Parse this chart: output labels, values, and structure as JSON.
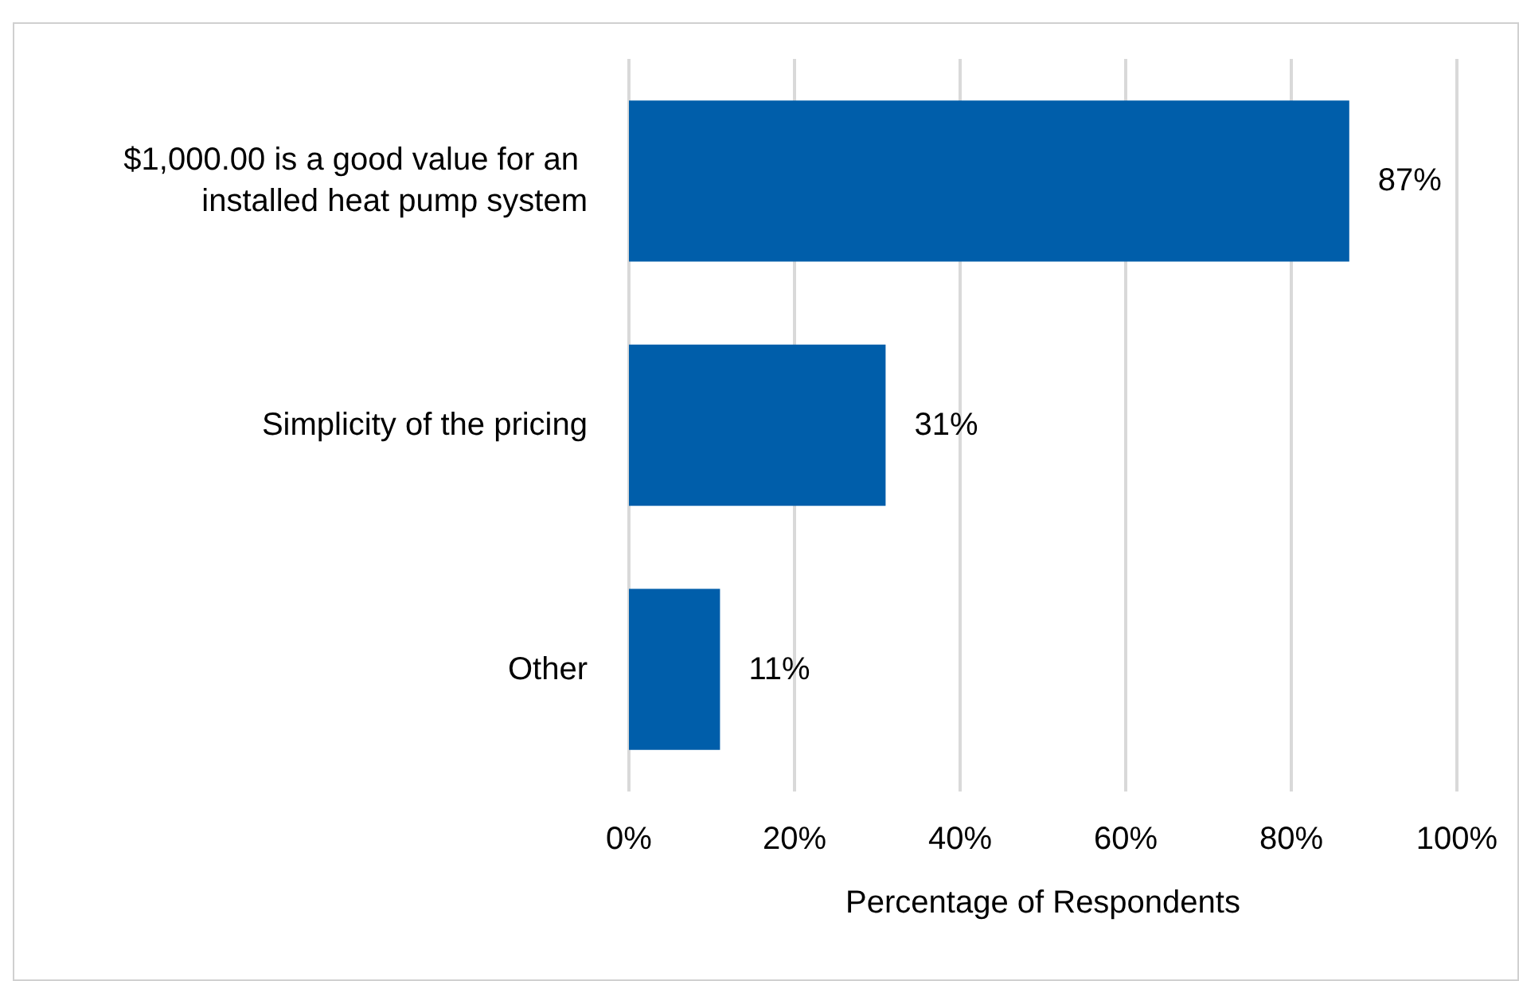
{
  "chart_data": {
    "type": "bar",
    "orientation": "horizontal",
    "xlabel": "Percentage of Respondents",
    "categories": [
      "$1,000.00 is a good value for an installed heat pump system",
      "Simplicity of the pricing",
      "Other"
    ],
    "values": [
      87,
      31,
      11
    ],
    "color": "#005eaa",
    "value_labels": [
      "87%",
      "31%",
      "11%"
    ],
    "xlim": [
      0,
      100
    ],
    "xticks": [
      {
        "value": 0,
        "label": "0%"
      },
      {
        "value": 20,
        "label": "20%"
      },
      {
        "value": 40,
        "label": "40%"
      },
      {
        "value": 60,
        "label": "60%"
      },
      {
        "value": 80,
        "label": "80%"
      },
      {
        "value": 100,
        "label": "100%"
      }
    ],
    "grid": "x"
  }
}
